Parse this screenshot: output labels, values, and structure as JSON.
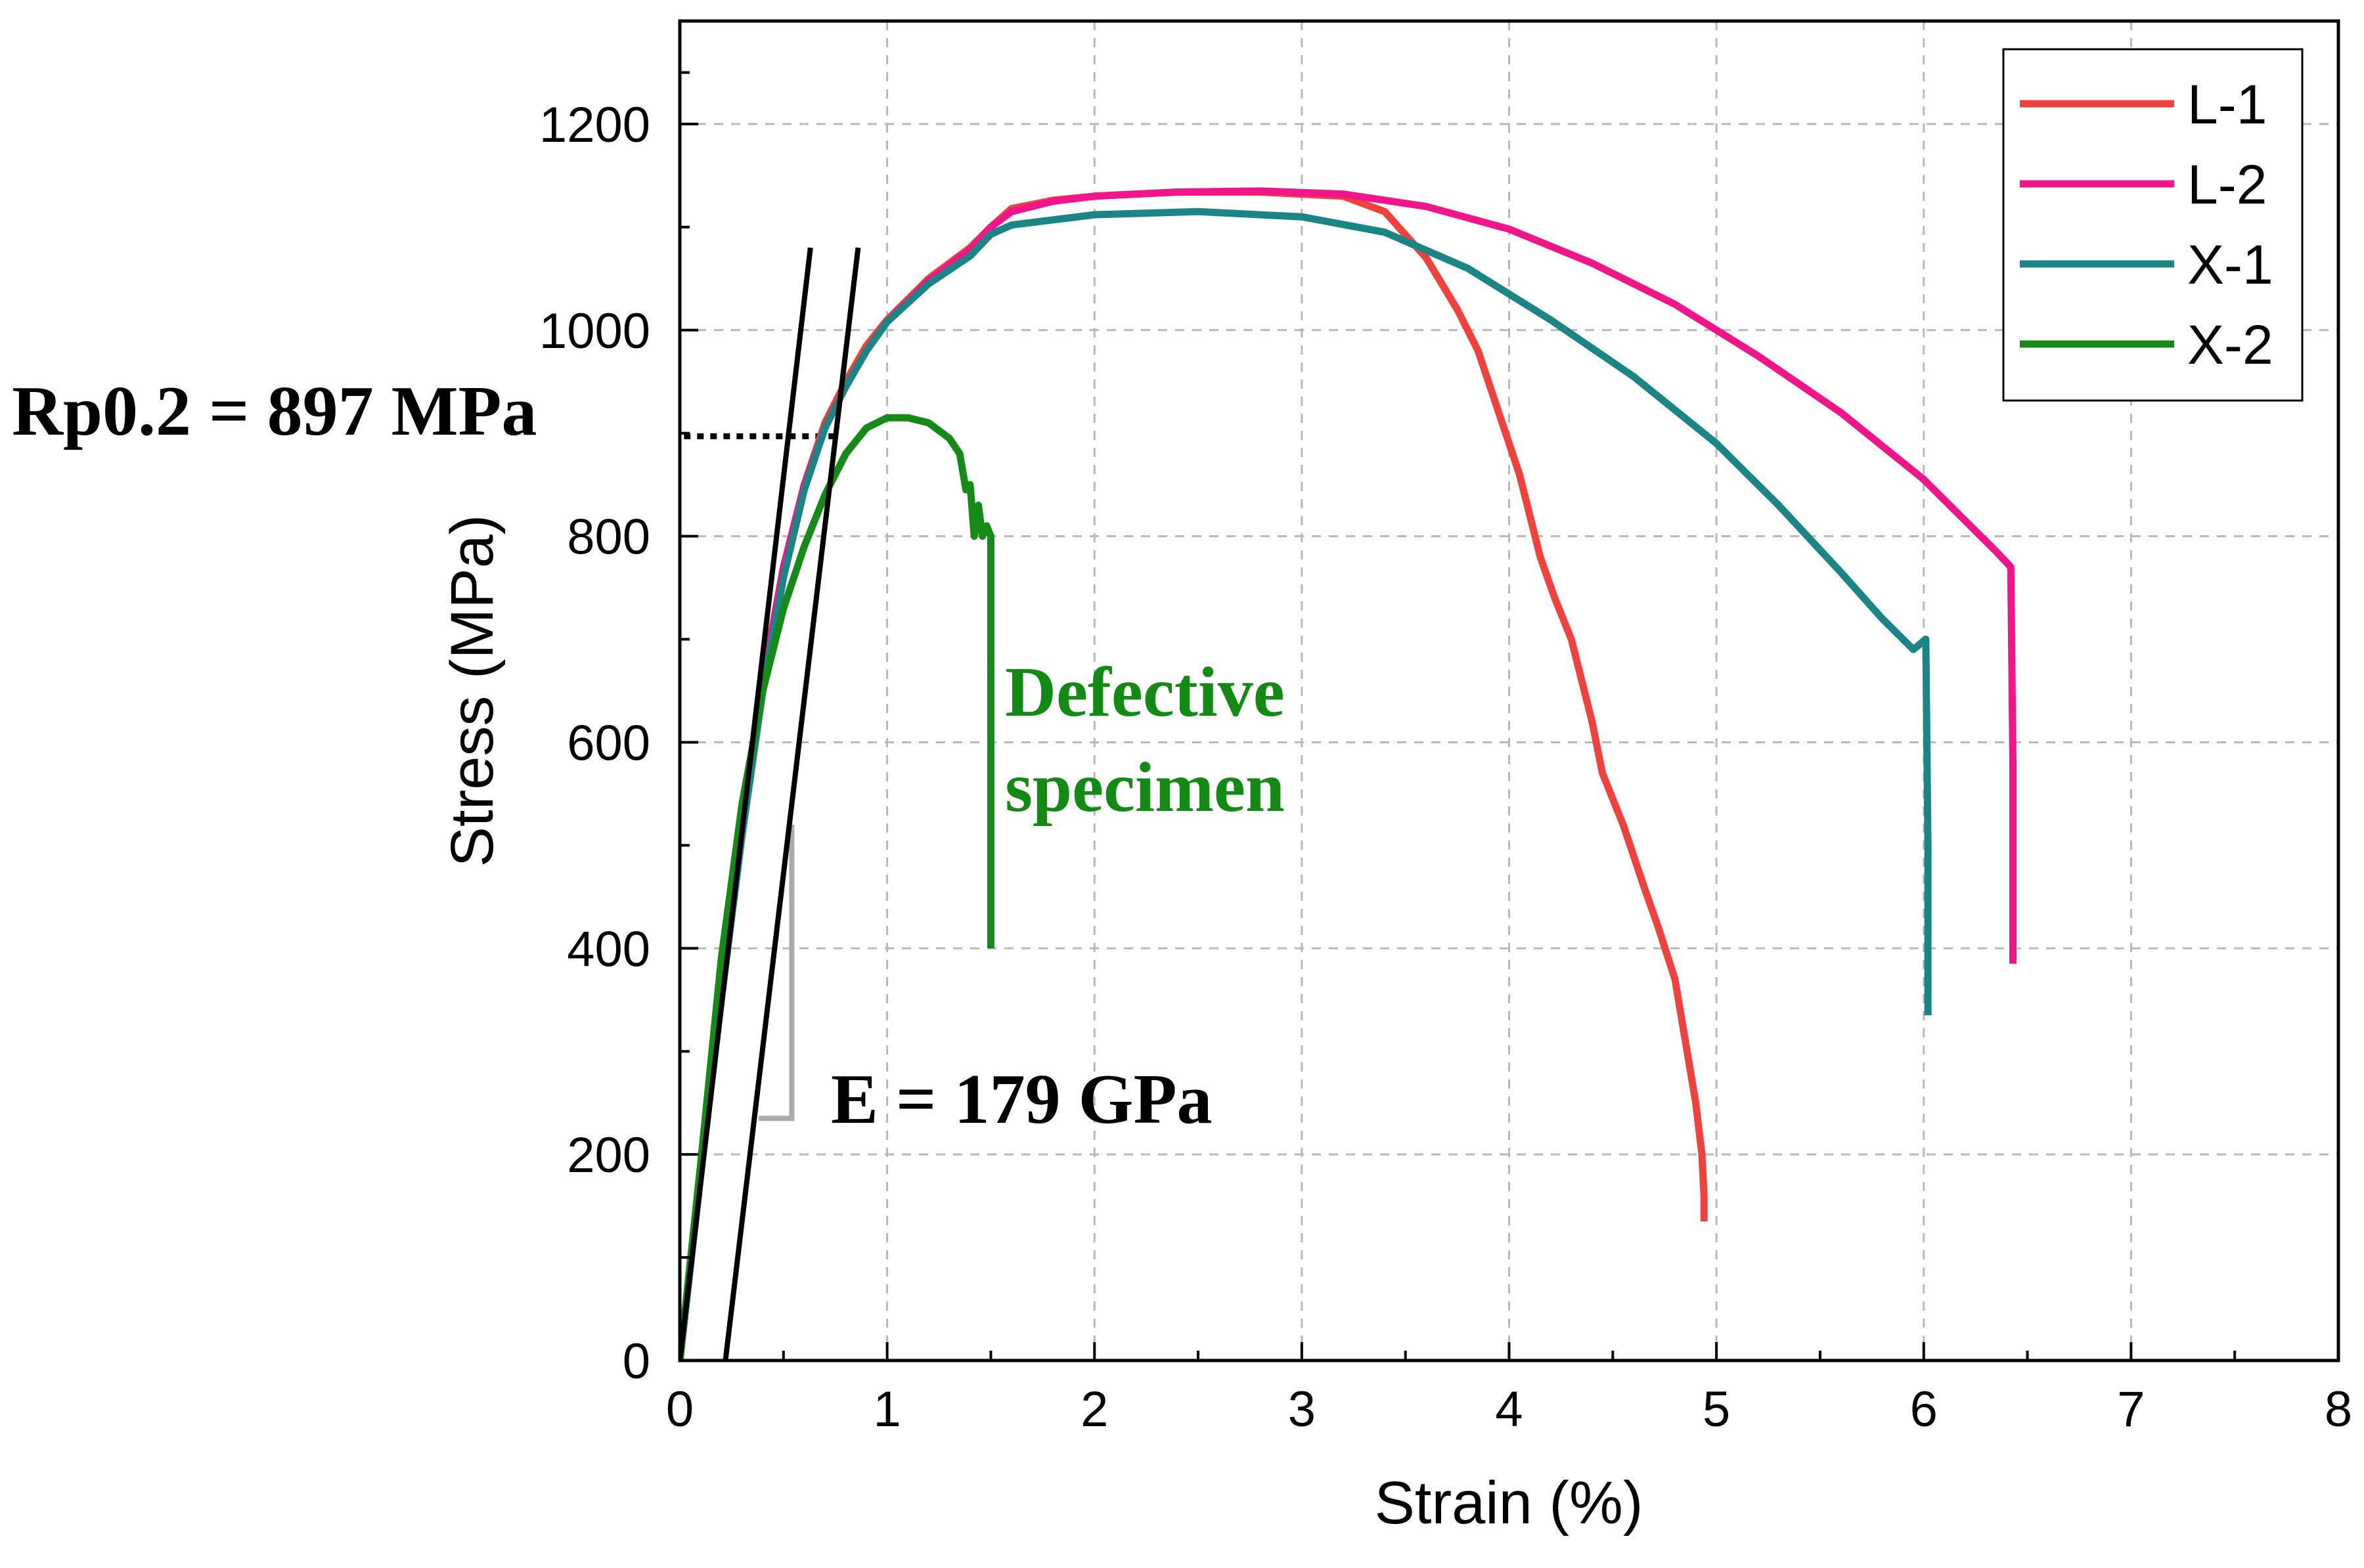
{
  "chart_data": {
    "type": "line",
    "title": "",
    "xlabel": "Strain (%)",
    "ylabel": "Stress (MPa)",
    "xlim": [
      0,
      8
    ],
    "ylim": [
      0,
      1300
    ],
    "xticks": [
      0,
      1,
      2,
      3,
      4,
      5,
      6,
      7,
      8
    ],
    "yticks": [
      0,
      200,
      400,
      600,
      800,
      1000,
      1200
    ],
    "grid": true,
    "legend_position": "top-right",
    "series": [
      {
        "name": "L-1",
        "color": "#f0413c",
        "x": [
          0,
          0.1,
          0.2,
          0.3,
          0.4,
          0.5,
          0.6,
          0.7,
          0.8,
          0.9,
          1.0,
          1.2,
          1.4,
          1.5,
          1.6,
          1.8,
          2.0,
          2.4,
          2.8,
          3.2,
          3.4,
          3.6,
          3.75,
          3.85,
          3.95,
          4.05,
          4.15,
          4.22,
          4.3,
          4.4,
          4.45,
          4.55,
          4.65,
          4.72,
          4.8,
          4.85,
          4.9,
          4.93,
          4.94,
          4.94
        ],
        "y": [
          0,
          180,
          355,
          520,
          660,
          770,
          850,
          910,
          950,
          985,
          1010,
          1050,
          1080,
          1100,
          1118,
          1126,
          1130,
          1134,
          1134,
          1130,
          1115,
          1070,
          1020,
          980,
          920,
          860,
          780,
          740,
          700,
          620,
          570,
          520,
          460,
          420,
          370,
          310,
          250,
          200,
          160,
          135
        ]
      },
      {
        "name": "L-2",
        "color": "#f0158a",
        "x": [
          0,
          0.1,
          0.2,
          0.3,
          0.4,
          0.5,
          0.6,
          0.7,
          0.8,
          0.9,
          1.0,
          1.2,
          1.4,
          1.5,
          1.6,
          1.8,
          2.0,
          2.4,
          2.8,
          3.2,
          3.6,
          4.0,
          4.4,
          4.8,
          5.2,
          5.6,
          6.0,
          6.2,
          6.35,
          6.42,
          6.43,
          6.43
        ],
        "y": [
          0,
          180,
          355,
          520,
          660,
          770,
          850,
          905,
          945,
          980,
          1008,
          1048,
          1078,
          1100,
          1115,
          1125,
          1130,
          1134,
          1135,
          1132,
          1120,
          1098,
          1065,
          1025,
          975,
          920,
          855,
          815,
          785,
          770,
          580,
          385
        ]
      },
      {
        "name": "X-1",
        "color": "#1b8585",
        "x": [
          0,
          0.1,
          0.2,
          0.3,
          0.4,
          0.5,
          0.6,
          0.7,
          0.8,
          0.9,
          1.0,
          1.2,
          1.4,
          1.5,
          1.6,
          2.0,
          2.5,
          3.0,
          3.4,
          3.8,
          4.2,
          4.6,
          5.0,
          5.3,
          5.6,
          5.8,
          5.95,
          6.01,
          6.02,
          6.02
        ],
        "y": [
          0,
          180,
          350,
          510,
          650,
          760,
          845,
          905,
          945,
          980,
          1008,
          1045,
          1072,
          1093,
          1102,
          1112,
          1115,
          1110,
          1095,
          1060,
          1010,
          955,
          890,
          830,
          765,
          720,
          690,
          700,
          500,
          335
        ]
      },
      {
        "name": "X-2",
        "color": "#168a16",
        "x": [
          0,
          0.1,
          0.2,
          0.3,
          0.4,
          0.5,
          0.6,
          0.7,
          0.8,
          0.9,
          1.0,
          1.1,
          1.2,
          1.3,
          1.35,
          1.38,
          1.4,
          1.42,
          1.44,
          1.46,
          1.48,
          1.5,
          1.5,
          1.5,
          1.5
        ],
        "y": [
          0,
          190,
          390,
          540,
          650,
          730,
          790,
          840,
          880,
          905,
          915,
          915,
          910,
          895,
          880,
          845,
          850,
          800,
          830,
          800,
          810,
          800,
          700,
          550,
          400
        ]
      }
    ],
    "annotations": {
      "rp02_label": "Rp0.2 = 897 MPa",
      "rp02_value": 897,
      "modulus_label": "E = 179 GPa",
      "defective_line1": "Defective",
      "defective_line2": "specimen",
      "modulus_line_1": {
        "x": [
          0,
          0.63
        ],
        "y": [
          0,
          1080
        ]
      },
      "modulus_line_2": {
        "x": [
          0.22,
          0.86
        ],
        "y": [
          0,
          1080
        ]
      }
    }
  }
}
